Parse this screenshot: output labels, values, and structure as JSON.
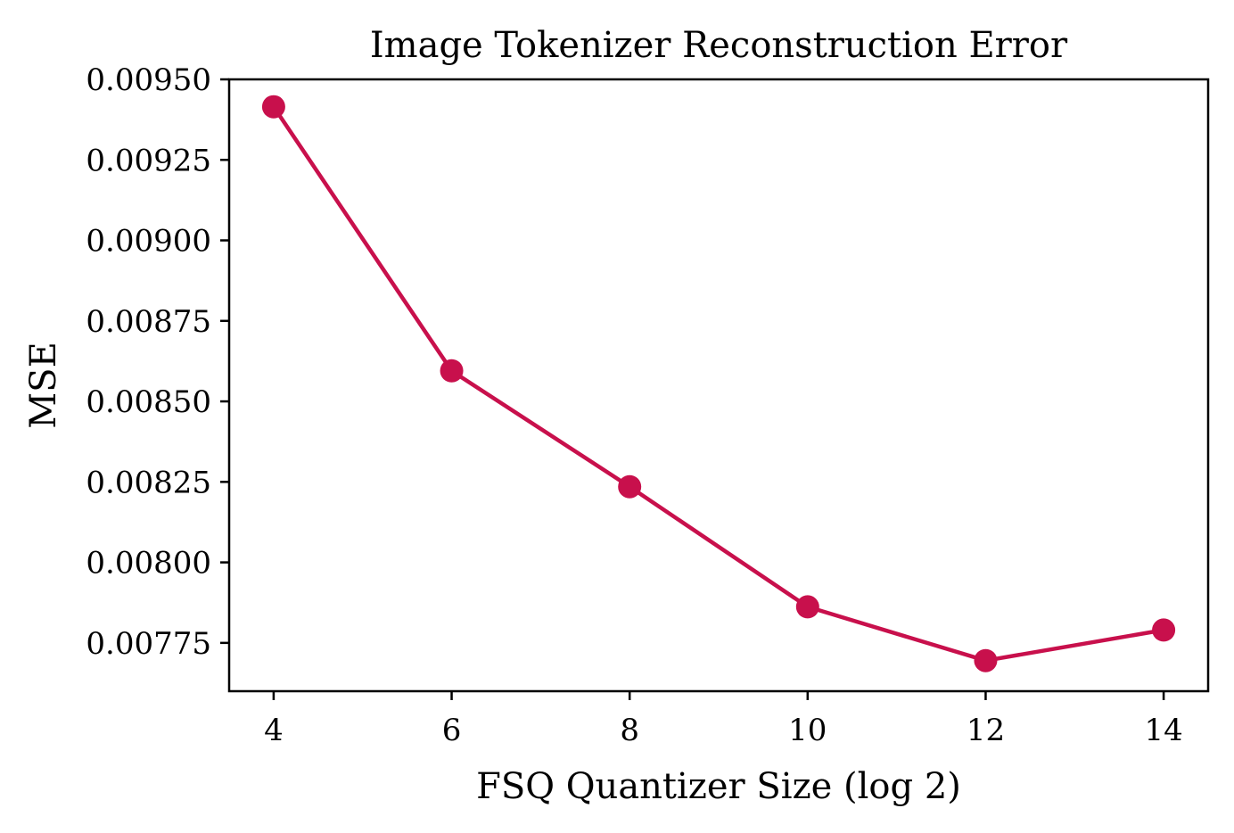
{
  "chart_data": {
    "type": "line",
    "title": "Image Tokenizer Reconstruction Error",
    "xlabel": "FSQ Quantizer Size (log 2)",
    "ylabel": "MSE",
    "x": [
      4,
      6,
      8,
      10,
      12,
      14
    ],
    "series": [
      {
        "values": [
          0.009415,
          0.008595,
          0.008235,
          0.007862,
          0.007695,
          0.00779
        ]
      }
    ],
    "xlim": [
      3.5,
      14.5
    ],
    "ylim": [
      0.0076,
      0.0095
    ],
    "xticks": [
      4,
      6,
      8,
      10,
      12,
      14
    ],
    "yticks": [
      0.00775,
      0.008,
      0.00825,
      0.0085,
      0.00875,
      0.009,
      0.00925,
      0.0095
    ],
    "ytick_labels": [
      "0.00775",
      "0.00800",
      "0.00825",
      "0.00850",
      "0.00875",
      "0.00900",
      "0.00925",
      "0.00950"
    ],
    "grid": false,
    "line_color": "#c8104c"
  }
}
